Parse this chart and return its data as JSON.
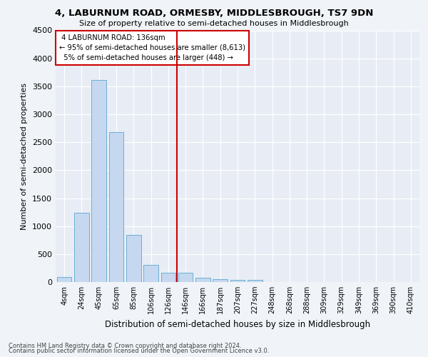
{
  "title": "4, LABURNUM ROAD, ORMESBY, MIDDLESBROUGH, TS7 9DN",
  "subtitle": "Size of property relative to semi-detached houses in Middlesbrough",
  "xlabel": "Distribution of semi-detached houses by size in Middlesbrough",
  "ylabel": "Number of semi-detached properties",
  "bar_color": "#c5d8ef",
  "bar_edge_color": "#6baed6",
  "property_size_idx": 6,
  "property_label": "4 LABURNUM ROAD: 136sqm",
  "pct_smaller": 95,
  "count_smaller": 8613,
  "pct_larger": 5,
  "count_larger": 448,
  "vline_color": "#cc0000",
  "annotation_box_color": "#cc0000",
  "categories": [
    "4sqm",
    "24sqm",
    "45sqm",
    "65sqm",
    "85sqm",
    "106sqm",
    "126sqm",
    "146sqm",
    "166sqm",
    "187sqm",
    "207sqm",
    "227sqm",
    "248sqm",
    "268sqm",
    "288sqm",
    "309sqm",
    "329sqm",
    "349sqm",
    "369sqm",
    "390sqm",
    "410sqm"
  ],
  "values": [
    90,
    1240,
    3610,
    2680,
    840,
    310,
    160,
    160,
    75,
    55,
    40,
    40,
    0,
    0,
    0,
    0,
    0,
    0,
    0,
    0,
    0
  ],
  "ylim": [
    0,
    4500
  ],
  "yticks": [
    0,
    500,
    1000,
    1500,
    2000,
    2500,
    3000,
    3500,
    4000,
    4500
  ],
  "footnote1": "Contains HM Land Registry data © Crown copyright and database right 2024.",
  "footnote2": "Contains public sector information licensed under the Open Government Licence v3.0.",
  "background_color": "#f0f4f8",
  "plot_bg_color": "#e8edf5"
}
